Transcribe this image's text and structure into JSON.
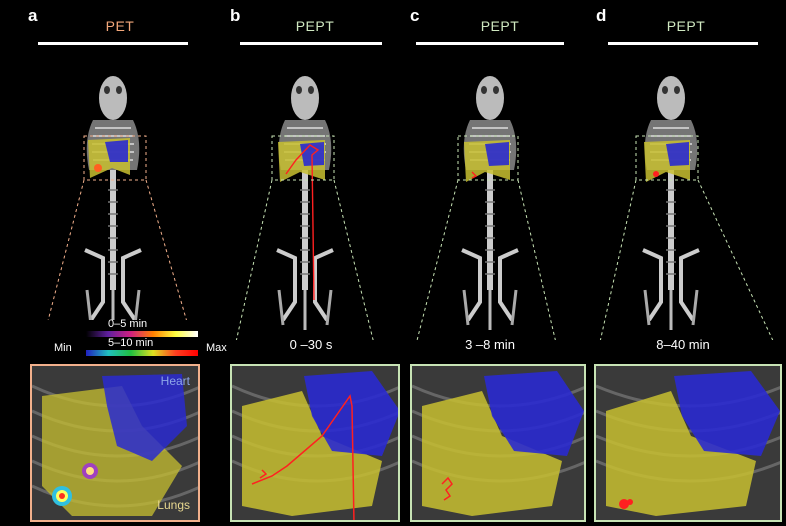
{
  "panels": [
    {
      "letter": "a",
      "title": "PET",
      "title_color": "#f2a77a",
      "inset_border": "#f2b08c",
      "time": ""
    },
    {
      "letter": "b",
      "title": "PEPT",
      "title_color": "#cfe8c0",
      "inset_border": "#c7e3b5",
      "time": "0 –30 s"
    },
    {
      "letter": "c",
      "title": "PEPT",
      "title_color": "#cfe8c0",
      "inset_border": "#c7e3b5",
      "time": "3 –8 min"
    },
    {
      "letter": "d",
      "title": "PEPT",
      "title_color": "#cfe8c0",
      "inset_border": "#c7e3b5",
      "time": "8–40 min"
    }
  ],
  "colorbar": {
    "label_top": "0–5 min",
    "label_bottom": "5–10 min",
    "min": "Min",
    "max": "Max"
  },
  "inset_labels": {
    "heart": "Heart",
    "lungs": "Lungs",
    "heart_color": "#8ea6e8",
    "lungs_color": "#e8d890"
  },
  "colors": {
    "heart": "#2a2ad0",
    "lungs": "#c8c030",
    "track": "#ff2020"
  }
}
